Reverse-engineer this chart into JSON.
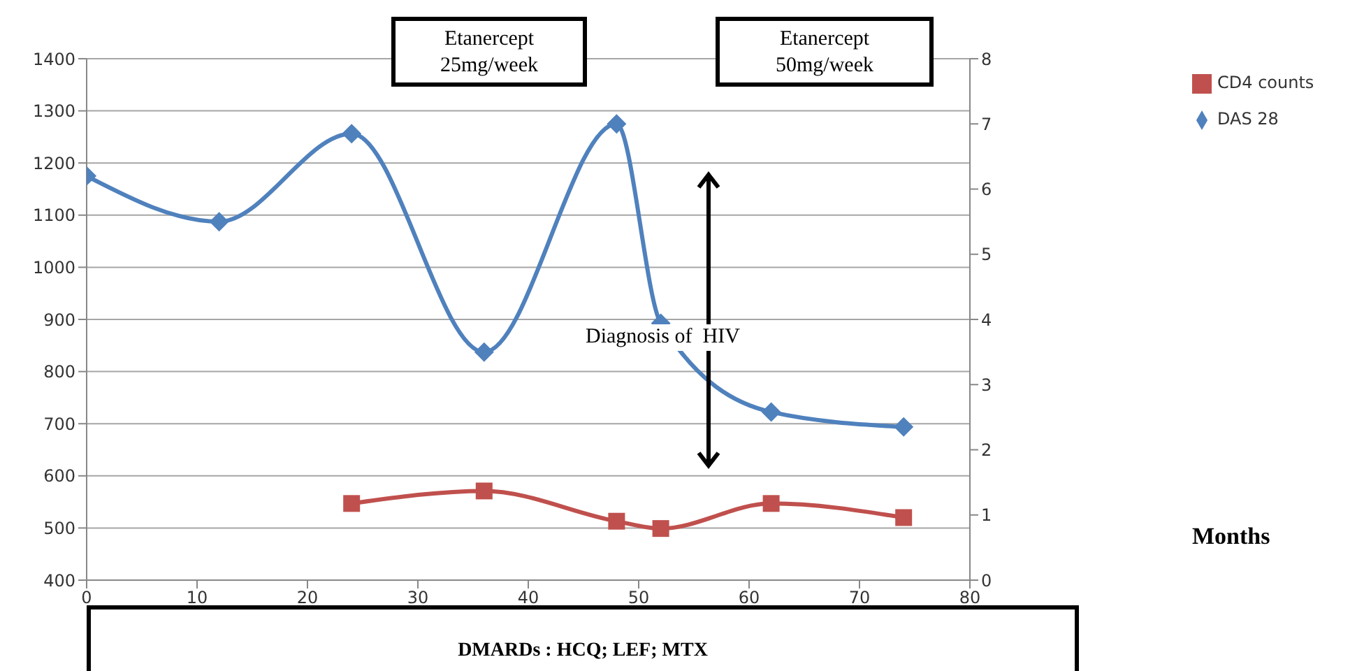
{
  "chart_data": {
    "type": "line",
    "xlim": [
      0,
      80
    ],
    "xticks": [
      0,
      10,
      20,
      30,
      40,
      50,
      60,
      70,
      80
    ],
    "ylim": [
      400,
      1400
    ],
    "yticks": [
      400,
      500,
      600,
      700,
      800,
      900,
      1000,
      1100,
      1200,
      1300,
      1400
    ],
    "y2lim": [
      0,
      8
    ],
    "y2ticks": [
      0,
      1,
      2,
      3,
      4,
      5,
      6,
      7,
      8
    ],
    "grid": "y",
    "legend": "top right",
    "line_style": "solid",
    "series": [
      {
        "name": "CD4 counts",
        "color": "#c0504d",
        "marker": "square",
        "x": [
          24,
          36,
          48,
          52,
          62,
          74
        ],
        "values": [
          547,
          571,
          513,
          499,
          547,
          520
        ]
      },
      {
        "name": "DAS 28",
        "color": "#4f81bd",
        "marker": "diamond",
        "axis": "y2",
        "x": [
          0,
          12,
          24,
          36,
          48,
          52,
          62,
          74
        ],
        "values": [
          6.2,
          5.5,
          6.85,
          3.5,
          7.0,
          3.94,
          2.58,
          2.35
        ]
      }
    ],
    "annotations": [
      "Etanercept\n25mg/week",
      "Etanercept\n50mg/week",
      "Diagnosis of  HIV",
      "DMARDs : HCQ; LEF; MTX",
      "Months"
    ]
  }
}
